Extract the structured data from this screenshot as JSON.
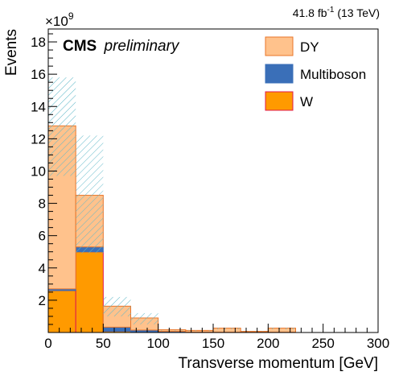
{
  "header": {
    "lumi_value": "41.8 fb",
    "lumi_exponent": "-1",
    "lumi_energy": " (13 TeV)",
    "cms": "CMS",
    "preliminary": "preliminary",
    "y_multiplier_base": "×10",
    "y_multiplier_exp": "9"
  },
  "colors": {
    "DY": "#ffc28c",
    "DY_edge": "#e8762a",
    "Multiboson": "#3a6fb8",
    "W": "#ff9a00",
    "W_edge": "#e0184c",
    "hatch": "#5fb8c8"
  },
  "chart_data": {
    "type": "bar",
    "stacked": true,
    "bin_edges": [
      0,
      25,
      50,
      75,
      100,
      125,
      150,
      175,
      200,
      225,
      250,
      275,
      300
    ],
    "series": [
      {
        "name": "W",
        "values": [
          2.6,
          5.0,
          0.08,
          0.05,
          0.02,
          0.01,
          0.01,
          0.01,
          0.01,
          0,
          0,
          0
        ]
      },
      {
        "name": "Multiboson",
        "values": [
          0.1,
          0.3,
          0.25,
          0.1,
          0.05,
          0.02,
          0.01,
          0.01,
          0.01,
          0,
          0,
          0
        ]
      },
      {
        "name": "DY",
        "values": [
          10.1,
          3.2,
          1.3,
          0.75,
          0.1,
          0.1,
          0.25,
          0.05,
          0.25,
          0,
          0,
          0
        ]
      }
    ],
    "uncertainty_band": {
      "style": "hatched",
      "upper": [
        15.8,
        12.2,
        2.2,
        1.2,
        0.15,
        0.15,
        0.3,
        0.07,
        0.3,
        0,
        0,
        0
      ],
      "lower": [
        9.7,
        4.9,
        1.0,
        0.5,
        0.1,
        0.1,
        0.2,
        0.05,
        0.2,
        0,
        0,
        0
      ]
    },
    "legend": [
      "DY",
      "Multiboson",
      "W"
    ],
    "legend_position": "top-right",
    "xlabel": "Transverse momentum [GeV]",
    "ylabel": "Events",
    "xlim": [
      0,
      300
    ],
    "ylim": [
      0,
      18.8
    ],
    "x_ticks": [
      0,
      50,
      100,
      150,
      200,
      250,
      300
    ],
    "y_ticks": [
      2,
      4,
      6,
      8,
      10,
      12,
      14,
      16,
      18
    ],
    "grid": false
  }
}
